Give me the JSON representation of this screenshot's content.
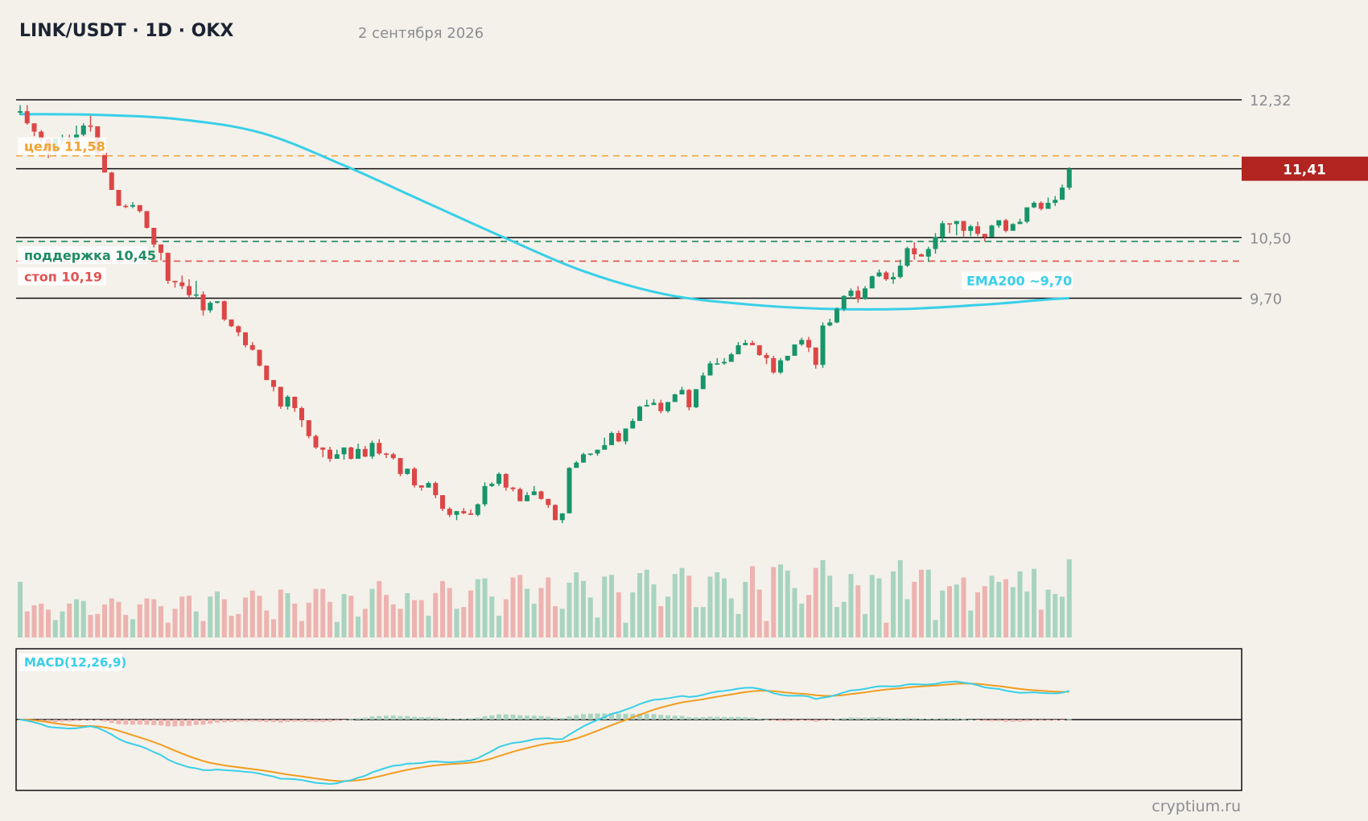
{
  "header": {
    "title": "LINK/USDT · 1D · OKX",
    "date": "2 сентября 2026"
  },
  "footer": {
    "watermark": "cryptium.ru"
  },
  "colors": {
    "background": "#f4f1ea",
    "up": "#17956a",
    "down": "#dc4646",
    "ema": "#38cfe8",
    "signal": "#f19c1f",
    "target": "#f2a12e",
    "support": "#1e8c63",
    "stop": "#e05252",
    "price_badge": "#b1241f"
  },
  "chart_data": {
    "type": "candlestick",
    "symbol": "LINK/USDT",
    "timeframe": "1D",
    "exchange": "OKX",
    "y_tick_labels": [
      "12,32",
      "10,50",
      "9,70"
    ],
    "y_ticks": [
      12.32,
      10.5,
      9.7
    ],
    "ylim": [
      6.73,
      12.32
    ],
    "grid": false,
    "current_price": {
      "value": 11.41,
      "label": "11,41"
    },
    "levels": [
      {
        "kind": "target",
        "label": "цель 11,58",
        "value": 11.58,
        "style": "dashed"
      },
      {
        "kind": "support",
        "label": "поддержка 10,45",
        "value": 10.45,
        "style": "dashed"
      },
      {
        "kind": "stop",
        "label": "стоп 10,19",
        "value": 10.19,
        "style": "dashed"
      }
    ],
    "horizontal_lines": [
      12.32,
      11.41,
      10.5,
      9.7
    ],
    "ema": {
      "label": "EMA200 ~9,70",
      "values": [
        12.13,
        12.12,
        12.06,
        11.88,
        11.46,
        10.98,
        10.5,
        10.05,
        9.75,
        9.62,
        9.56,
        9.56,
        9.62,
        9.7
      ]
    },
    "volume": {
      "min": 0,
      "max": 100
    },
    "macd": {
      "label": "MACD(12,26,9)",
      "ylim": [
        -1.8,
        1.8
      ],
      "zero_line": true
    },
    "candles": [
      [
        12.15,
        12.17,
        12.25,
        12.12,
        64
      ],
      [
        12.17,
        12.01,
        12.25,
        11.99,
        30
      ],
      [
        12.01,
        11.9,
        11.99,
        11.84,
        37
      ],
      [
        11.9,
        11.8,
        11.92,
        11.75,
        39
      ],
      [
        11.8,
        11.63,
        11.81,
        11.55,
        32
      ],
      [
        11.63,
        11.81,
        11.81,
        11.59,
        20
      ],
      [
        11.81,
        11.81,
        11.86,
        11.76,
        30
      ],
      [
        11.81,
        11.78,
        11.86,
        11.72,
        39
      ],
      [
        11.78,
        11.86,
        11.98,
        11.82,
        44
      ],
      [
        11.86,
        11.98,
        12.01,
        11.84,
        42
      ],
      [
        11.98,
        11.97,
        12.11,
        11.9,
        26
      ],
      [
        11.97,
        11.62,
        11.97,
        11.59,
        27
      ],
      [
        11.62,
        11.36,
        11.62,
        11.36,
        38
      ],
      [
        11.36,
        11.13,
        11.37,
        11.13,
        45
      ],
      [
        11.13,
        10.92,
        11.13,
        10.92,
        41
      ],
      [
        10.92,
        10.91,
        10.94,
        10.89,
        26
      ],
      [
        10.91,
        10.93,
        10.97,
        10.89,
        21
      ],
      [
        10.93,
        10.85,
        10.93,
        10.83,
        38
      ],
      [
        10.85,
        10.63,
        10.85,
        10.62,
        45
      ],
      [
        10.63,
        10.41,
        10.63,
        10.37,
        44
      ],
      [
        10.41,
        10.3,
        10.41,
        10.2,
        36
      ],
      [
        10.3,
        9.93,
        10.3,
        9.89,
        17
      ],
      [
        9.93,
        9.91,
        9.91,
        9.84,
        33
      ],
      [
        9.91,
        9.86,
        10.0,
        9.82,
        47
      ],
      [
        9.86,
        9.74,
        9.95,
        9.7,
        48
      ],
      [
        9.74,
        9.75,
        9.93,
        9.7,
        30
      ],
      [
        9.75,
        9.54,
        9.79,
        9.47,
        19
      ],
      [
        9.54,
        9.64,
        9.66,
        9.51,
        47
      ],
      [
        9.64,
        9.66,
        9.66,
        9.63,
        53
      ],
      [
        9.66,
        9.42,
        9.67,
        9.4,
        44
      ],
      [
        9.42,
        9.33,
        9.41,
        9.32,
        25
      ],
      [
        9.33,
        9.25,
        9.34,
        9.2,
        27
      ],
      [
        9.25,
        9.08,
        9.25,
        9.05,
        46
      ],
      [
        9.08,
        9.02,
        9.12,
        9.01,
        54
      ],
      [
        9.02,
        8.81,
        9.02,
        8.8,
        48
      ],
      [
        8.81,
        8.62,
        8.81,
        8.62,
        31
      ],
      [
        8.62,
        8.53,
        8.62,
        8.47,
        21
      ],
      [
        8.53,
        8.27,
        8.53,
        8.24,
        55
      ],
      [
        8.27,
        8.4,
        8.42,
        8.23,
        51
      ],
      [
        8.4,
        8.25,
        8.4,
        8.2,
        39
      ],
      [
        8.25,
        8.09,
        8.27,
        8.0,
        19
      ],
      [
        8.09,
        7.88,
        8.09,
        7.85,
        40
      ],
      [
        7.88,
        7.73,
        7.9,
        7.71,
        56
      ],
      [
        7.73,
        7.7,
        7.7,
        7.6,
        56
      ],
      [
        7.7,
        7.58,
        7.74,
        7.54,
        41
      ],
      [
        7.58,
        7.64,
        7.7,
        7.62,
        18
      ],
      [
        7.64,
        7.73,
        7.73,
        7.57,
        50
      ],
      [
        7.73,
        7.58,
        7.74,
        7.57,
        48
      ],
      [
        7.58,
        7.71,
        7.78,
        7.58,
        24
      ],
      [
        7.71,
        7.61,
        7.75,
        7.6,
        33
      ],
      [
        7.61,
        7.79,
        7.82,
        7.58,
        56
      ],
      [
        7.79,
        7.65,
        7.84,
        7.63,
        65
      ],
      [
        7.65,
        7.64,
        7.66,
        7.59,
        49
      ],
      [
        7.64,
        7.59,
        7.66,
        7.57,
        38
      ],
      [
        7.59,
        7.38,
        7.58,
        7.35,
        33
      ],
      [
        7.38,
        7.45,
        7.45,
        7.37,
        51
      ],
      [
        7.45,
        7.23,
        7.47,
        7.2,
        43
      ],
      [
        7.23,
        7.2,
        7.2,
        7.16,
        43
      ],
      [
        7.2,
        7.26,
        7.28,
        7.2,
        25
      ],
      [
        7.26,
        7.1,
        7.28,
        7.06,
        51
      ],
      [
        7.1,
        6.92,
        7.1,
        6.89,
        65
      ],
      [
        6.92,
        6.84,
        6.94,
        6.81,
        57
      ],
      [
        6.84,
        6.89,
        6.87,
        6.77,
        33
      ],
      [
        6.89,
        6.86,
        6.93,
        6.85,
        35
      ],
      [
        6.86,
        6.84,
        6.91,
        6.84,
        54
      ],
      [
        6.84,
        6.98,
        6.99,
        6.82,
        67
      ],
      [
        6.98,
        7.22,
        7.27,
        6.95,
        68
      ],
      [
        7.22,
        7.25,
        7.27,
        7.21,
        47
      ],
      [
        7.25,
        7.38,
        7.4,
        7.22,
        25
      ],
      [
        7.38,
        7.2,
        7.39,
        7.16,
        44
      ],
      [
        7.2,
        7.18,
        7.21,
        7.15,
        69
      ],
      [
        7.18,
        7.02,
        7.2,
        7.02,
        72
      ],
      [
        7.02,
        7.1,
        7.14,
        7.02,
        56
      ],
      [
        7.1,
        7.15,
        7.22,
        7.14,
        39
      ],
      [
        7.15,
        7.05,
        7.16,
        7.04,
        57
      ],
      [
        7.05,
        6.97,
        7.05,
        6.93,
        69
      ],
      [
        6.97,
        6.77,
        6.98,
        6.77,
        36
      ],
      [
        6.77,
        6.86,
        6.86,
        6.73,
        33
      ],
      [
        6.86,
        7.46,
        7.47,
        6.86,
        63
      ],
      [
        7.46,
        7.53,
        7.55,
        7.5,
        75
      ],
      [
        7.53,
        7.64,
        7.66,
        7.53,
        65
      ],
      [
        7.64,
        7.65,
        7.65,
        7.62,
        46
      ],
      [
        7.65,
        7.7,
        7.7,
        7.62,
        23
      ],
      [
        7.7,
        7.76,
        7.86,
        7.71,
        70
      ],
      [
        7.76,
        7.92,
        7.94,
        7.81,
        72
      ],
      [
        7.92,
        7.81,
        7.95,
        7.8,
        52
      ],
      [
        7.81,
        7.98,
        7.98,
        7.77,
        17
      ],
      [
        7.98,
        8.08,
        8.11,
        7.98,
        52
      ],
      [
        8.08,
        8.27,
        8.28,
        8.08,
        74
      ],
      [
        8.27,
        8.29,
        8.36,
        8.27,
        78
      ],
      [
        8.29,
        8.32,
        8.37,
        8.31,
        61
      ],
      [
        8.32,
        8.21,
        8.36,
        8.18,
        36
      ],
      [
        8.21,
        8.33,
        8.33,
        8.19,
        47
      ],
      [
        8.33,
        8.43,
        8.44,
        8.36,
        73
      ],
      [
        8.43,
        8.49,
        8.53,
        8.46,
        80
      ],
      [
        8.49,
        8.26,
        8.5,
        8.22,
        71
      ],
      [
        8.26,
        8.5,
        8.5,
        8.25,
        35
      ],
      [
        8.5,
        8.68,
        8.72,
        8.52,
        35
      ],
      [
        8.68,
        8.84,
        8.87,
        8.74,
        70
      ],
      [
        8.84,
        8.84,
        8.91,
        8.82,
        75
      ],
      [
        8.84,
        8.86,
        8.91,
        8.82,
        68
      ],
      [
        8.86,
        8.96,
        8.98,
        8.92,
        45
      ],
      [
        8.96,
        9.08,
        9.12,
        9.01,
        27
      ],
      [
        9.08,
        9.11,
        9.15,
        9.08,
        64
      ],
      [
        9.11,
        9.08,
        9.14,
        9.08,
        82
      ],
      [
        9.08,
        8.95,
        9.04,
        8.94,
        55
      ],
      [
        8.95,
        8.91,
        8.98,
        8.83,
        19
      ],
      [
        8.91,
        8.72,
        8.94,
        8.7,
        81
      ],
      [
        8.72,
        8.88,
        8.91,
        8.7,
        84
      ],
      [
        8.88,
        8.94,
        8.94,
        8.87,
        77
      ],
      [
        8.94,
        9.09,
        9.09,
        8.97,
        57
      ],
      [
        9.09,
        9.15,
        9.18,
        9.07,
        39
      ],
      [
        9.15,
        9.05,
        9.19,
        8.99,
        49
      ],
      [
        9.05,
        8.82,
        9.04,
        8.77,
        80
      ],
      [
        8.82,
        9.34,
        9.38,
        8.78,
        89
      ],
      [
        9.34,
        9.38,
        9.43,
        9.33,
        71
      ],
      [
        9.38,
        9.56,
        9.58,
        9.37,
        35
      ],
      [
        9.56,
        9.73,
        9.74,
        9.53,
        41
      ],
      [
        9.73,
        9.8,
        9.83,
        9.69,
        73
      ],
      [
        9.8,
        9.69,
        9.86,
        9.64,
        60
      ],
      [
        9.69,
        9.83,
        9.86,
        9.68,
        27
      ],
      [
        9.83,
        9.99,
        10.0,
        9.84,
        72
      ],
      [
        9.99,
        10.04,
        10.08,
        9.98,
        68
      ],
      [
        10.04,
        9.95,
        10.06,
        9.93,
        17
      ],
      [
        9.95,
        9.98,
        10.04,
        9.89,
        76
      ],
      [
        9.98,
        10.13,
        10.21,
        9.96,
        89
      ],
      [
        10.13,
        10.36,
        10.38,
        10.11,
        44
      ],
      [
        10.36,
        10.28,
        10.44,
        10.21,
        64
      ],
      [
        10.28,
        10.25,
        10.29,
        10.25,
        78
      ],
      [
        10.25,
        10.35,
        10.38,
        10.18,
        78
      ],
      [
        10.35,
        10.51,
        10.56,
        10.29,
        20
      ],
      [
        10.51,
        10.69,
        10.72,
        10.45,
        54
      ],
      [
        10.69,
        10.68,
        10.68,
        10.56,
        59
      ],
      [
        10.68,
        10.72,
        10.72,
        10.53,
        61
      ],
      [
        10.72,
        10.59,
        10.71,
        10.5,
        69
      ],
      [
        10.59,
        10.65,
        10.67,
        10.52,
        31
      ],
      [
        10.65,
        10.55,
        10.71,
        10.52,
        52
      ],
      [
        10.55,
        10.51,
        10.53,
        10.45,
        59
      ],
      [
        10.51,
        10.66,
        10.67,
        10.51,
        71
      ],
      [
        10.66,
        10.73,
        10.7,
        10.63,
        64
      ],
      [
        10.73,
        10.59,
        10.75,
        10.57,
        67
      ],
      [
        10.59,
        10.68,
        10.69,
        10.64,
        58
      ],
      [
        10.68,
        10.71,
        10.75,
        10.68,
        76
      ],
      [
        10.71,
        10.9,
        10.9,
        10.69,
        53
      ],
      [
        10.9,
        10.96,
        10.98,
        10.89,
        79
      ],
      [
        10.96,
        10.88,
        10.98,
        10.86,
        32
      ],
      [
        10.88,
        10.96,
        11.03,
        10.91,
        55
      ],
      [
        10.96,
        11.0,
        11.05,
        10.92,
        50
      ],
      [
        11.0,
        11.16,
        11.2,
        11.02,
        47
      ],
      [
        11.16,
        11.41,
        11.43,
        11.13,
        90
      ]
    ]
  }
}
